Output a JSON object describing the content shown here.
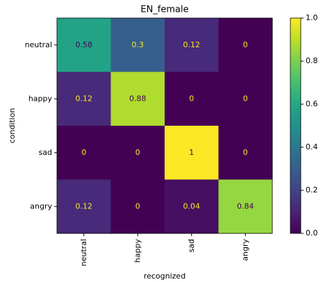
{
  "chart_data": {
    "type": "heatmap",
    "title": "EN_female",
    "x_label": "recognized",
    "y_label": "condition",
    "categories": [
      "neutral",
      "happy",
      "sad",
      "angry"
    ],
    "y_categories": [
      "neutral",
      "happy",
      "sad",
      "angry"
    ],
    "values": [
      [
        0.58,
        0.3,
        0.12,
        0
      ],
      [
        0.12,
        0.88,
        0,
        0
      ],
      [
        0,
        0,
        1,
        0
      ],
      [
        0.12,
        0,
        0.04,
        0.84
      ]
    ],
    "colormap": "viridis",
    "clim": [
      0,
      1
    ],
    "cticks": [
      {
        "value": 0,
        "label": "0.0"
      },
      0.2,
      0.4,
      0.6,
      0.8,
      {
        "value": 1,
        "label": "1.0"
      }
    ]
  }
}
